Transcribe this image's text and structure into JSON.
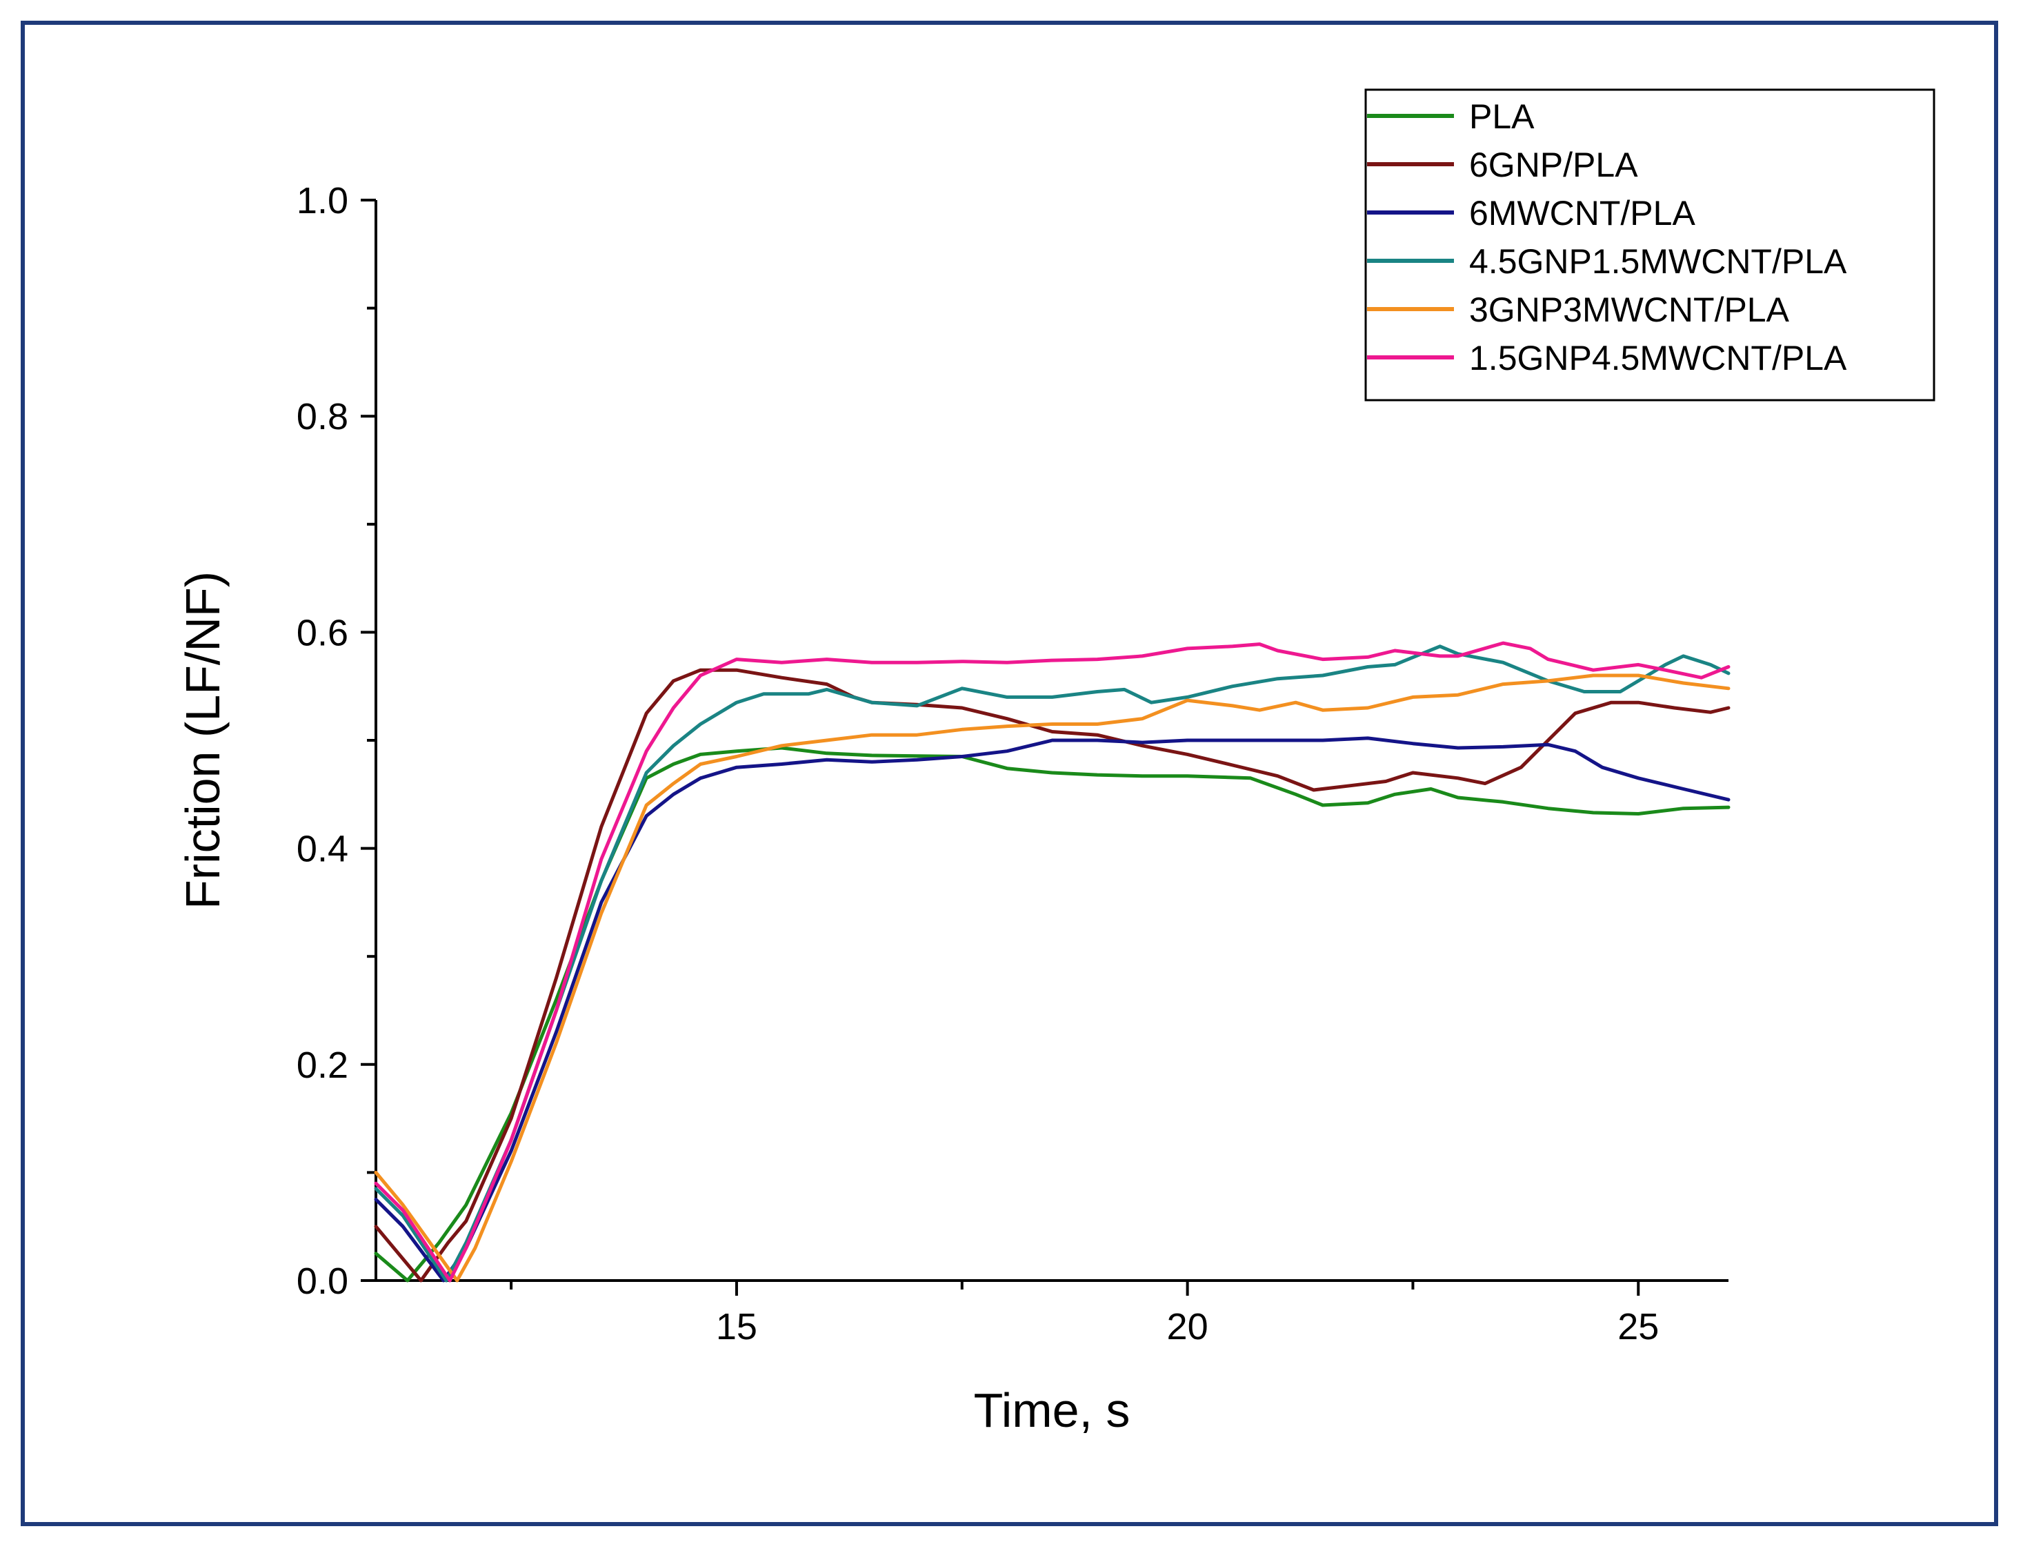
{
  "chart_data": {
    "type": "line",
    "title": "",
    "xlabel": "Time, s",
    "ylabel": "Friction (LF/NF)",
    "xlim": [
      11,
      26
    ],
    "ylim": [
      0,
      1.0
    ],
    "x_ticks": [
      15,
      20,
      25
    ],
    "x_tick_labels": [
      "15",
      "20",
      "25"
    ],
    "y_ticks": [
      0.0,
      0.2,
      0.4,
      0.6,
      0.8,
      1.0
    ],
    "y_tick_labels": [
      "0.0",
      "0.2",
      "0.4",
      "0.6",
      "0.8",
      "1.0"
    ],
    "legend_position": "top-right",
    "series": [
      {
        "name": "PLA",
        "color": "#1a8a1a",
        "points": [
          [
            11,
            0.025
          ],
          [
            11.35,
            0.0
          ],
          [
            11.7,
            0.035
          ],
          [
            12.0,
            0.07
          ],
          [
            12.5,
            0.155
          ],
          [
            13.0,
            0.26
          ],
          [
            13.5,
            0.37
          ],
          [
            14.0,
            0.465
          ],
          [
            14.3,
            0.478
          ],
          [
            14.6,
            0.487
          ],
          [
            15.0,
            0.49
          ],
          [
            15.5,
            0.493
          ],
          [
            16.0,
            0.488
          ],
          [
            16.5,
            0.486
          ],
          [
            17.5,
            0.485
          ],
          [
            18.0,
            0.474
          ],
          [
            18.5,
            0.47
          ],
          [
            19.0,
            0.468
          ],
          [
            19.5,
            0.467
          ],
          [
            20.0,
            0.467
          ],
          [
            20.7,
            0.465
          ],
          [
            21.2,
            0.45
          ],
          [
            21.5,
            0.44
          ],
          [
            22.0,
            0.442
          ],
          [
            22.3,
            0.45
          ],
          [
            22.7,
            0.455
          ],
          [
            23.0,
            0.447
          ],
          [
            23.5,
            0.443
          ],
          [
            24.0,
            0.437
          ],
          [
            24.5,
            0.433
          ],
          [
            25.0,
            0.432
          ],
          [
            25.5,
            0.437
          ],
          [
            26.0,
            0.438
          ]
        ]
      },
      {
        "name": "6GNP/PLA",
        "color": "#7a1414",
        "points": [
          [
            11,
            0.05
          ],
          [
            11.5,
            0.0
          ],
          [
            11.8,
            0.035
          ],
          [
            12.0,
            0.055
          ],
          [
            12.5,
            0.15
          ],
          [
            13.0,
            0.28
          ],
          [
            13.5,
            0.42
          ],
          [
            14.0,
            0.525
          ],
          [
            14.3,
            0.555
          ],
          [
            14.6,
            0.565
          ],
          [
            15.0,
            0.565
          ],
          [
            15.5,
            0.558
          ],
          [
            16.0,
            0.552
          ],
          [
            16.3,
            0.54
          ],
          [
            16.5,
            0.535
          ],
          [
            17.0,
            0.533
          ],
          [
            17.5,
            0.53
          ],
          [
            18.0,
            0.52
          ],
          [
            18.5,
            0.508
          ],
          [
            19.0,
            0.505
          ],
          [
            19.5,
            0.495
          ],
          [
            20.0,
            0.487
          ],
          [
            20.5,
            0.477
          ],
          [
            21.0,
            0.467
          ],
          [
            21.4,
            0.454
          ],
          [
            21.8,
            0.458
          ],
          [
            22.2,
            0.462
          ],
          [
            22.5,
            0.47
          ],
          [
            23.0,
            0.465
          ],
          [
            23.3,
            0.46
          ],
          [
            23.7,
            0.475
          ],
          [
            24.0,
            0.5
          ],
          [
            24.3,
            0.525
          ],
          [
            24.7,
            0.535
          ],
          [
            25.0,
            0.535
          ],
          [
            25.4,
            0.53
          ],
          [
            25.8,
            0.526
          ],
          [
            26.0,
            0.53
          ]
        ]
      },
      {
        "name": "6MWCNT/PLA",
        "color": "#141488",
        "points": [
          [
            11,
            0.075
          ],
          [
            11.3,
            0.05
          ],
          [
            11.75,
            0.0
          ],
          [
            12.0,
            0.03
          ],
          [
            12.5,
            0.12
          ],
          [
            13.0,
            0.23
          ],
          [
            13.5,
            0.35
          ],
          [
            14.0,
            0.43
          ],
          [
            14.3,
            0.45
          ],
          [
            14.6,
            0.465
          ],
          [
            15.0,
            0.475
          ],
          [
            15.5,
            0.478
          ],
          [
            16.0,
            0.482
          ],
          [
            16.5,
            0.48
          ],
          [
            17.0,
            0.482
          ],
          [
            17.5,
            0.485
          ],
          [
            18.0,
            0.49
          ],
          [
            18.5,
            0.5
          ],
          [
            19.0,
            0.5
          ],
          [
            19.5,
            0.498
          ],
          [
            20.0,
            0.5
          ],
          [
            20.5,
            0.5
          ],
          [
            21.0,
            0.5
          ],
          [
            21.5,
            0.5
          ],
          [
            22.0,
            0.502
          ],
          [
            22.5,
            0.497
          ],
          [
            23.0,
            0.493
          ],
          [
            23.5,
            0.494
          ],
          [
            24.0,
            0.496
          ],
          [
            24.3,
            0.49
          ],
          [
            24.6,
            0.475
          ],
          [
            25.0,
            0.465
          ],
          [
            25.5,
            0.455
          ],
          [
            26.0,
            0.445
          ]
        ]
      },
      {
        "name": "4.5GNP1.5MWCNT/PLA",
        "color": "#1a8484",
        "points": [
          [
            11,
            0.085
          ],
          [
            11.3,
            0.06
          ],
          [
            11.78,
            0.0
          ],
          [
            12.0,
            0.035
          ],
          [
            12.5,
            0.13
          ],
          [
            13.0,
            0.25
          ],
          [
            13.5,
            0.37
          ],
          [
            14.0,
            0.47
          ],
          [
            14.3,
            0.495
          ],
          [
            14.6,
            0.515
          ],
          [
            15.0,
            0.535
          ],
          [
            15.3,
            0.543
          ],
          [
            15.8,
            0.543
          ],
          [
            16.0,
            0.547
          ],
          [
            16.5,
            0.535
          ],
          [
            17.0,
            0.532
          ],
          [
            17.5,
            0.548
          ],
          [
            18.0,
            0.54
          ],
          [
            18.5,
            0.54
          ],
          [
            19.0,
            0.545
          ],
          [
            19.3,
            0.547
          ],
          [
            19.6,
            0.535
          ],
          [
            20.0,
            0.54
          ],
          [
            20.5,
            0.55
          ],
          [
            21.0,
            0.557
          ],
          [
            21.5,
            0.56
          ],
          [
            22.0,
            0.568
          ],
          [
            22.3,
            0.57
          ],
          [
            22.8,
            0.587
          ],
          [
            23.0,
            0.58
          ],
          [
            23.5,
            0.572
          ],
          [
            24.0,
            0.555
          ],
          [
            24.4,
            0.545
          ],
          [
            24.8,
            0.545
          ],
          [
            25.0,
            0.555
          ],
          [
            25.3,
            0.57
          ],
          [
            25.5,
            0.578
          ],
          [
            25.8,
            0.57
          ],
          [
            26.0,
            0.562
          ]
        ]
      },
      {
        "name": "3GNP3MWCNT/PLA",
        "color": "#f39020",
        "points": [
          [
            11,
            0.1
          ],
          [
            11.3,
            0.07
          ],
          [
            11.9,
            0.0
          ],
          [
            12.1,
            0.03
          ],
          [
            12.5,
            0.11
          ],
          [
            13.0,
            0.22
          ],
          [
            13.5,
            0.34
          ],
          [
            14.0,
            0.44
          ],
          [
            14.3,
            0.46
          ],
          [
            14.6,
            0.478
          ],
          [
            15.0,
            0.485
          ],
          [
            15.5,
            0.495
          ],
          [
            16.0,
            0.5
          ],
          [
            16.5,
            0.505
          ],
          [
            17.0,
            0.505
          ],
          [
            17.5,
            0.51
          ],
          [
            18.0,
            0.513
          ],
          [
            18.5,
            0.515
          ],
          [
            19.0,
            0.515
          ],
          [
            19.5,
            0.52
          ],
          [
            20.0,
            0.537
          ],
          [
            20.5,
            0.532
          ],
          [
            20.8,
            0.528
          ],
          [
            21.2,
            0.535
          ],
          [
            21.5,
            0.528
          ],
          [
            22.0,
            0.53
          ],
          [
            22.5,
            0.54
          ],
          [
            23.0,
            0.542
          ],
          [
            23.5,
            0.552
          ],
          [
            24.0,
            0.555
          ],
          [
            24.5,
            0.56
          ],
          [
            25.0,
            0.56
          ],
          [
            25.5,
            0.553
          ],
          [
            26.0,
            0.548
          ]
        ]
      },
      {
        "name": "1.5GNP4.5MWCNT/PLA",
        "color": "#ee1890",
        "points": [
          [
            11,
            0.09
          ],
          [
            11.3,
            0.065
          ],
          [
            11.82,
            0.0
          ],
          [
            12.0,
            0.03
          ],
          [
            12.5,
            0.13
          ],
          [
            13.0,
            0.25
          ],
          [
            13.5,
            0.39
          ],
          [
            14.0,
            0.49
          ],
          [
            14.3,
            0.53
          ],
          [
            14.6,
            0.56
          ],
          [
            15.0,
            0.575
          ],
          [
            15.5,
            0.572
          ],
          [
            16.0,
            0.575
          ],
          [
            16.5,
            0.572
          ],
          [
            17.0,
            0.572
          ],
          [
            17.5,
            0.573
          ],
          [
            18.0,
            0.572
          ],
          [
            18.5,
            0.574
          ],
          [
            19.0,
            0.575
          ],
          [
            19.5,
            0.578
          ],
          [
            20.0,
            0.585
          ],
          [
            20.5,
            0.587
          ],
          [
            20.8,
            0.589
          ],
          [
            21.0,
            0.583
          ],
          [
            21.5,
            0.575
          ],
          [
            22.0,
            0.577
          ],
          [
            22.3,
            0.583
          ],
          [
            22.8,
            0.578
          ],
          [
            23.0,
            0.578
          ],
          [
            23.5,
            0.59
          ],
          [
            23.8,
            0.585
          ],
          [
            24.0,
            0.575
          ],
          [
            24.5,
            0.565
          ],
          [
            25.0,
            0.57
          ],
          [
            25.3,
            0.565
          ],
          [
            25.7,
            0.558
          ],
          [
            26.0,
            0.568
          ]
        ]
      }
    ]
  }
}
